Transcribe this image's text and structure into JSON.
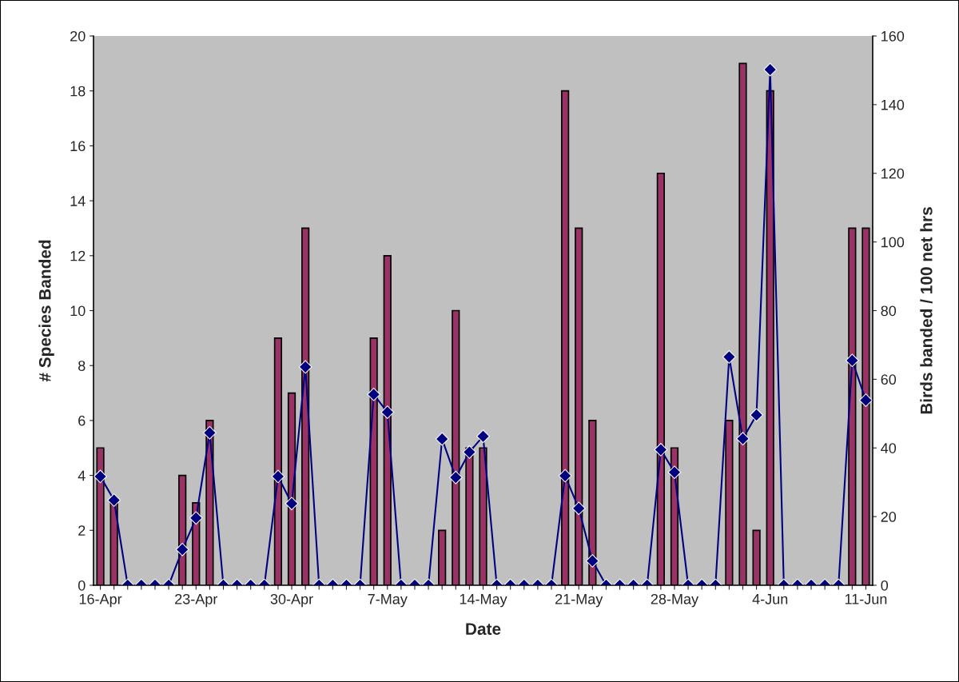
{
  "chart_data": {
    "type": "bar",
    "xlabel": "Date",
    "ylabel": "# Species Banded",
    "y2label": "Birds banded / 100 net hrs",
    "categories": [
      "16-Apr",
      null,
      null,
      null,
      null,
      null,
      null,
      "23-Apr",
      null,
      null,
      null,
      null,
      null,
      null,
      "30-Apr",
      null,
      null,
      null,
      null,
      null,
      null,
      "7-May",
      null,
      null,
      null,
      null,
      null,
      null,
      "14-May",
      null,
      null,
      null,
      null,
      null,
      null,
      "21-May",
      null,
      null,
      null,
      null,
      null,
      null,
      "28-May",
      null,
      null,
      null,
      null,
      null,
      null,
      "4-Jun",
      null,
      null,
      null,
      null,
      null,
      null,
      "11-Jun"
    ],
    "series": [
      {
        "color": "#993366",
        "values": [
          5,
          3,
          0,
          0,
          0,
          0,
          4,
          3,
          6,
          0,
          0,
          0,
          0,
          9,
          7,
          13,
          0,
          0,
          0,
          0,
          9,
          12,
          0,
          0,
          0,
          2,
          10,
          5,
          5,
          0,
          0,
          0,
          0,
          0,
          18,
          13,
          6,
          0,
          0,
          0,
          0,
          15,
          5,
          0,
          0,
          0,
          6,
          19,
          2,
          18,
          0,
          0,
          0,
          0,
          0,
          13,
          13
        ]
      },
      {
        "type": "line",
        "axis": "y2",
        "color": "#000080",
        "marker": "diamond",
        "values": [
          31.7,
          24.8,
          0,
          0,
          0,
          0,
          10.4,
          19.6,
          44.4,
          0,
          0,
          0,
          0,
          31.7,
          23.8,
          63.6,
          0,
          0,
          0,
          0,
          55.6,
          50.4,
          0,
          0,
          0,
          42.6,
          31.4,
          38.8,
          43.4,
          0,
          0,
          0,
          0,
          0,
          31.9,
          22.4,
          7.1,
          0,
          0,
          0,
          0,
          39.5,
          32.9,
          0,
          0,
          0,
          66.5,
          42.7,
          49.6,
          150.2,
          0,
          0,
          0,
          0,
          0,
          65.5,
          53.9
        ]
      }
    ],
    "ylim": [
      0,
      20
    ],
    "yticks": [
      0,
      2,
      4,
      6,
      8,
      10,
      12,
      14,
      16,
      18,
      20
    ],
    "y2lim": [
      0,
      160
    ],
    "y2ticks": [
      0,
      20,
      40,
      60,
      80,
      100,
      120,
      140,
      160
    ],
    "grid": false,
    "legend": false
  }
}
